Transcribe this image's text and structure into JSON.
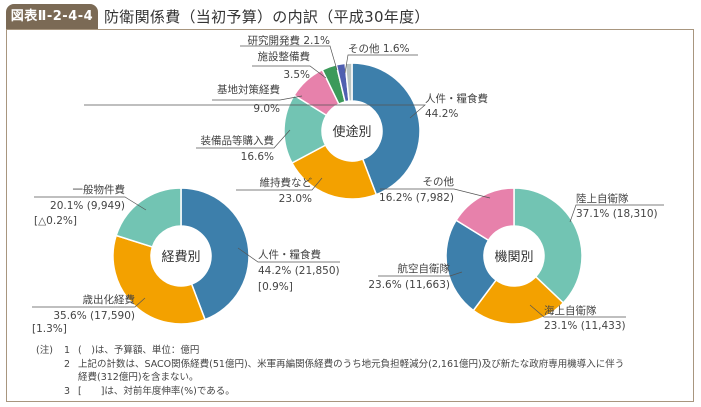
{
  "header": {
    "figure_id": "図表Ⅱ-2-4-4",
    "title": "防衛関係費（当初予算）の内訳（平成30年度）"
  },
  "colors": {
    "tab_bg": "#7b6a55",
    "frame": "#a8967f",
    "blue": "#3d7fab",
    "orange": "#f3a100",
    "teal": "#72c4b3",
    "pink": "#e781ab",
    "green": "#3c9a5a",
    "indigo": "#4f5fb0",
    "gray": "#b9c4c2"
  },
  "chart_data": [
    {
      "type": "pie",
      "variant": "donut",
      "title": "使途別",
      "unit": "%",
      "slices": [
        {
          "name": "人件・糧食費",
          "value": 44.2,
          "label": "人件・糧食費",
          "sub": "44.2%",
          "color": "#3d7fab"
        },
        {
          "name": "維持費など",
          "value": 23.0,
          "label": "維持費など",
          "sub": "23.0%",
          "color": "#f3a100"
        },
        {
          "name": "装備品等購入費",
          "value": 16.6,
          "label": "装備品等購入費",
          "sub": "16.6%",
          "color": "#72c4b3"
        },
        {
          "name": "基地対策経費",
          "value": 9.0,
          "label": "基地対策経費",
          "sub": "9.0%",
          "color": "#e781ab"
        },
        {
          "name": "施設整備費",
          "value": 3.5,
          "label": "施設整備費",
          "sub": "3.5%",
          "color": "#3c9a5a"
        },
        {
          "name": "研究開発費",
          "value": 2.1,
          "label": "研究開発費 2.1%",
          "sub": "",
          "color": "#4f5fb0"
        },
        {
          "name": "その他",
          "value": 1.6,
          "label": "その他 1.6%",
          "sub": "",
          "color": "#b9c4c2"
        }
      ]
    },
    {
      "type": "pie",
      "variant": "donut",
      "title": "経費別",
      "unit": "%",
      "slices": [
        {
          "name": "人件・糧食費",
          "value": 44.2,
          "amount": 21850,
          "growth": "0.9%",
          "label": "人件・糧食費",
          "sub": "44.2% (21,850)",
          "sub2": "[0.9%]",
          "color": "#3d7fab"
        },
        {
          "name": "歳出化経費",
          "value": 35.6,
          "amount": 17590,
          "growth": "1.3%",
          "label": "歳出化経費",
          "sub": "35.6% (17,590)",
          "sub2": "[1.3%]",
          "color": "#f3a100"
        },
        {
          "name": "一般物件費",
          "value": 20.1,
          "amount": 9949,
          "growth": "△0.2%",
          "label": "一般物件費",
          "sub": "20.1% (9,949)",
          "sub2": "[△0.2%]",
          "color": "#72c4b3"
        }
      ]
    },
    {
      "type": "pie",
      "variant": "donut",
      "title": "機関別",
      "unit": "%",
      "slices": [
        {
          "name": "陸上自衛隊",
          "value": 37.1,
          "amount": 18310,
          "label": "陸上自衛隊",
          "sub": "37.1% (18,310)",
          "color": "#72c4b3"
        },
        {
          "name": "海上自衛隊",
          "value": 23.1,
          "amount": 11433,
          "label": "海上自衛隊",
          "sub": "23.1% (11,433)",
          "color": "#f3a100"
        },
        {
          "name": "航空自衛隊",
          "value": 23.6,
          "amount": 11663,
          "label": "航空自衛隊",
          "sub": "23.6% (11,663)",
          "color": "#3d7fab"
        },
        {
          "name": "その他",
          "value": 16.2,
          "amount": 7982,
          "label": "その他",
          "sub": "16.2% (7,982)",
          "color": "#e781ab"
        }
      ]
    }
  ],
  "notes": {
    "head": "(注)",
    "items": [
      {
        "num": "1",
        "lines": [
          "(　)は、予算額、単位：億円"
        ]
      },
      {
        "num": "2",
        "lines": [
          "上記の計数は、SACO関係経費(51億円)、米軍再編関係経費のうち地元負担軽減分(2,161億円)及び新たな政府専用機導入に伴う",
          "経費(312億円)を含まない。"
        ]
      },
      {
        "num": "3",
        "lines": [
          "[　　]は、対前年度伸率(%)である。"
        ]
      }
    ]
  }
}
